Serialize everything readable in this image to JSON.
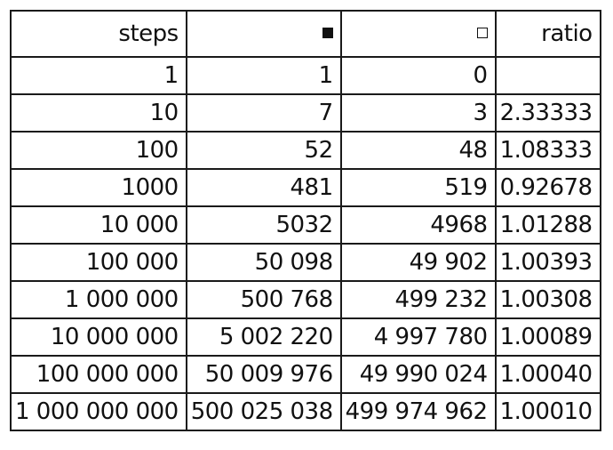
{
  "chart_data": {
    "type": "table",
    "columns": [
      {
        "label": "steps"
      },
      {
        "label": "",
        "icon": "filled-square-icon"
      },
      {
        "label": "",
        "icon": "hollow-square-icon"
      },
      {
        "label": "ratio"
      }
    ],
    "rows": [
      [
        "1",
        "1",
        "0",
        ""
      ],
      [
        "10",
        "7",
        "3",
        "2.33333"
      ],
      [
        "100",
        "52",
        "48",
        "1.08333"
      ],
      [
        "1000",
        "481",
        "519",
        "0.92678"
      ],
      [
        "10 000",
        "5032",
        "4968",
        "1.01288"
      ],
      [
        "100 000",
        "50 098",
        "49 902",
        "1.00393"
      ],
      [
        "1 000 000",
        "500 768",
        "499 232",
        "1.00308"
      ],
      [
        "10 000 000",
        "5 002 220",
        "4 997 780",
        "1.00089"
      ],
      [
        "100 000 000",
        "50 009 976",
        "49 990 024",
        "1.00040"
      ],
      [
        "1 000 000 000",
        "500 025 038",
        "499 974 962",
        "1.00010"
      ]
    ]
  }
}
